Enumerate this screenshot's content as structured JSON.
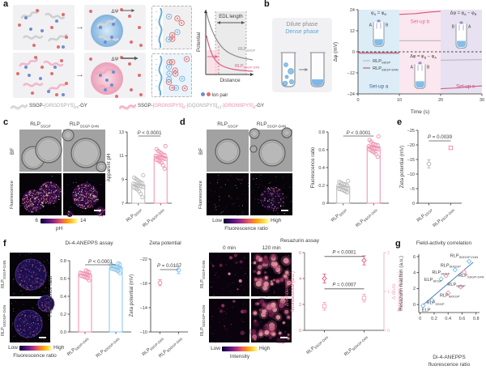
{
  "colors": {
    "pink": "#e05a85",
    "light_pink": "#f2a7bc",
    "gray_pt": "#b9b9b9",
    "blue_pt": "#86c5ea",
    "ion_red": "#e26d6d",
    "ion_blue": "#6b8fd0",
    "trend_blue": "#4a7fc1",
    "setup_a_bg": "#ddedf7",
    "setup_b_bg": "#fbe7ef",
    "setup_c_bg": "#e7e1f1",
    "fire": [
      "#1b0533",
      "#43116b",
      "#71208c",
      "#a12c86",
      "#cf4875",
      "#ee6e59",
      "#fba55c",
      "#fde39b",
      "#ffffff"
    ],
    "anepps": [
      "#140a3f",
      "#2a1668",
      "#45247f",
      "#6b3594",
      "#a04b8f",
      "#d66f7e",
      "#f29e63"
    ],
    "resazurin": [
      "#40102f",
      "#6d1d4a",
      "#9c3a64",
      "#c96682",
      "#eb97a8"
    ]
  },
  "panels": {
    "a": {
      "label": "a",
      "dpsi": "ΔΨ",
      "plot": {
        "ylabel": "Potential",
        "xlabel": "Distance",
        "edl": "EDL length",
        "curve_gray": {
          "base": "RLP",
          "sub": "SSGP"
        },
        "curve_pink": {
          "base": "RLP",
          "sub": "SSGP-D4N"
        }
      },
      "ion_legend": "Ion pair",
      "seq1": [
        {
          "t": "SSGP-"
        },
        {
          "t": "[GRGDSPYS]",
          "c": "#a9a9a9"
        },
        {
          "t": "20",
          "sub": true,
          "c": "#a9a9a9"
        },
        {
          "t": "-GY"
        }
      ],
      "seq2": [
        {
          "t": "SSGP-"
        },
        {
          "t": "[GRGNSPYS]",
          "c": "#ef8ba6"
        },
        {
          "t": "4",
          "sub": true,
          "c": "#ef8ba6"
        },
        {
          "t": "-[GQGNSPYS]",
          "c": "#a9a9a9"
        },
        {
          "t": "12",
          "sub": true,
          "c": "#a9a9a9"
        },
        {
          "t": "-[GRGNSPYS]",
          "c": "#ef8ba6"
        },
        {
          "t": "4",
          "sub": true,
          "c": "#ef8ba6"
        },
        {
          "t": "-GY"
        }
      ]
    },
    "b": {
      "label": "b",
      "dilute": "Dilute phase",
      "dense": "Dense phase"
    },
    "c": {
      "label": "c",
      "col1": {
        "base": "RLP",
        "sub": "SSGP"
      },
      "col2": {
        "base": "RLP",
        "sub": "SSGP-D4N"
      },
      "row1": "BF",
      "row2": "Fluorescence",
      "colorbar": {
        "min": "6",
        "max": "14",
        "title": "pH"
      }
    },
    "d": {
      "label": "d",
      "col1": {
        "base": "RLP",
        "sub": "SSGP"
      },
      "col2": {
        "base": "RLP",
        "sub": "SSGP-D4N"
      },
      "row1": "BF",
      "row2": "Fluorescence",
      "colorbar": {
        "min": "Low",
        "max": "High",
        "title": "Fluorescence ratio"
      }
    },
    "e": {
      "label": "e"
    },
    "f": {
      "label": "f",
      "anepps_title": "Di-4-ANEPPS assay",
      "zeta_title": "Zeta potential",
      "resazurin_title": "Resazurin assay",
      "img1_label": {
        "base": "RLP",
        "sub": "SSGP-D4N"
      },
      "img2_label": {
        "base": "RLP",
        "sub": "SDDGP-D4N"
      },
      "rz_col1": "0 min",
      "rz_col2": "120 min",
      "colorbar1": {
        "min": "Low",
        "max": "High",
        "title": "Fluorescence ratio"
      },
      "colorbar2": {
        "min": "Low",
        "max": "High",
        "title": "Intensity"
      }
    },
    "g": {
      "label": "g",
      "title": "Field-activity correlation"
    }
  },
  "chart_data": [
    {
      "id": "chart-b",
      "type": "line",
      "title": "",
      "xlabel": "Time (s)",
      "ylabel": "Δφ (mV)",
      "xlim": [
        0,
        30
      ],
      "ylim": [
        -24,
        24
      ],
      "xticks": [
        {
          "v": 0,
          "l": "0"
        },
        {
          "v": 10,
          "l": "10"
        },
        {
          "v": 20,
          "l": "20"
        },
        {
          "v": 30,
          "l": "30"
        }
      ],
      "yticks": [
        {
          "v": 24,
          "l": "24"
        },
        {
          "v": 12,
          "l": "12"
        },
        {
          "v": 0,
          "l": "0"
        },
        {
          "v": -12,
          "l": "−12"
        },
        {
          "v": -24,
          "l": "−24"
        }
      ],
      "zero_line": true,
      "regions": [
        {
          "x0": 0,
          "x1": 10,
          "color": "#ddedf7",
          "label": "Set-up a",
          "label_color": "#3d5a96",
          "label_x": 5,
          "label_y": -20.5
        },
        {
          "x0": 10,
          "x1": 20,
          "color": "#fbe7ef",
          "label": "Set-up b",
          "label_color": "#e06790",
          "label_x": 15,
          "label_y": 16.5
        },
        {
          "x0": 20,
          "x1": 30,
          "color": "#e7e1f1",
          "label": "Set-up c",
          "label_color": "#c2477a",
          "label_x": 26,
          "label_y": -20.5
        }
      ],
      "series": [
        {
          "name": {
            "base": "RLP",
            "sub": "SSGP"
          },
          "color": "#b9b9b9",
          "segments": [
            [
              [
                0,
                -1
              ],
              [
                10,
                -1
              ]
            ],
            [
              [
                10,
                6.3
              ],
              [
                20,
                6.3
              ]
            ],
            [
              [
                20,
                -4.8
              ],
              [
                30,
                -4.4
              ]
            ]
          ]
        },
        {
          "name": {
            "base": "RLP",
            "sub": "SSGP-D4N"
          },
          "color": "#d0567e",
          "segments": [
            [
              [
                0,
                -0.5
              ],
              [
                10,
                -0.5
              ]
            ],
            [
              [
                10,
                21.3
              ],
              [
                14,
                21.8
              ],
              [
                17,
                22.6
              ],
              [
                20,
                23.1
              ]
            ],
            [
              [
                20,
                -21
              ],
              [
                24,
                -20.6
              ],
              [
                27,
                -19.9
              ],
              [
                30,
                -19.4
              ]
            ]
          ]
        }
      ],
      "annotations": [
        {
          "x": 5,
          "y": 21.5,
          "parts": [
            {
              "t": "φ"
            },
            {
              "t": "A",
              "sub": true
            },
            {
              "t": " = φ"
            },
            {
              "t": "B",
              "sub": true
            }
          ]
        },
        {
          "x": 15.8,
          "y": -3.2,
          "parts": [
            {
              "t": "Δφ = φ"
            },
            {
              "t": "B",
              "sub": true
            },
            {
              "t": " − φ"
            },
            {
              "t": "A",
              "sub": true
            }
          ]
        },
        {
          "x": 25.5,
          "y": 21.5,
          "parts": [
            {
              "t": "Δφ = φ"
            },
            {
              "t": "A",
              "sub": true
            },
            {
              "t": " − φ"
            },
            {
              "t": "B",
              "sub": true
            }
          ]
        }
      ],
      "tubes": [
        {
          "x": 5,
          "y": 10,
          "left": "A",
          "right": "B"
        },
        {
          "x": 15,
          "y": -14,
          "left": "A",
          "right": "B"
        },
        {
          "x": 25,
          "y": 9,
          "left": "B",
          "right": "A"
        }
      ],
      "legend": {
        "x": 1.2,
        "y": -6
      }
    },
    {
      "id": "chart-c",
      "type": "strip",
      "ylabel": "Apparent pH",
      "ylim": [
        7,
        13
      ],
      "yticks": [
        {
          "v": 7,
          "l": "7"
        },
        {
          "v": 9,
          "l": "9"
        },
        {
          "v": 11,
          "l": "11"
        },
        {
          "v": 13,
          "l": "13"
        }
      ],
      "p": "P < 0.0001",
      "groups": [
        {
          "label": {
            "base": "RLP",
            "sub": "SSGP"
          },
          "color": "#b9b9b9",
          "mean": 8.55,
          "values": [
            7.5,
            7.8,
            8.0,
            8.15,
            8.25,
            8.3,
            8.35,
            8.4,
            8.45,
            8.5,
            8.55,
            8.6,
            8.65,
            8.7,
            8.75,
            8.85,
            8.95,
            9.05,
            9.15,
            9.35
          ]
        },
        {
          "label": {
            "base": "RLP",
            "sub": "SSGP-D4N"
          },
          "color": "#ef8fae",
          "mean": 10.9,
          "values": [
            9.9,
            10.2,
            10.4,
            10.5,
            10.6,
            10.65,
            10.7,
            10.75,
            10.8,
            10.85,
            10.9,
            10.95,
            11.0,
            11.05,
            11.1,
            11.2,
            11.3,
            11.4,
            11.55,
            11.8
          ]
        }
      ]
    },
    {
      "id": "chart-d",
      "type": "strip",
      "ylabel": "Fluorescence ratio",
      "ylim": [
        0,
        0.8
      ],
      "yticks": [
        {
          "v": 0,
          "l": "0"
        },
        {
          "v": 0.2,
          "l": "0.2"
        },
        {
          "v": 0.4,
          "l": "0.4"
        },
        {
          "v": 0.6,
          "l": "0.6"
        },
        {
          "v": 0.8,
          "l": "0.8"
        }
      ],
      "p": "P < 0.0001",
      "groups": [
        {
          "label": {
            "base": "RLP",
            "sub": "SSGP"
          },
          "color": "#b9b9b9",
          "mean": 0.185,
          "values": [
            0.12,
            0.13,
            0.14,
            0.15,
            0.155,
            0.16,
            0.165,
            0.17,
            0.175,
            0.18,
            0.185,
            0.19,
            0.195,
            0.2,
            0.21,
            0.215,
            0.22,
            0.23,
            0.24,
            0.25
          ]
        },
        {
          "label": {
            "base": "RLP",
            "sub": "SSGP-D4N"
          },
          "color": "#ef8fae",
          "mean": 0.63,
          "values": [
            0.52,
            0.55,
            0.57,
            0.58,
            0.59,
            0.6,
            0.605,
            0.61,
            0.615,
            0.62,
            0.625,
            0.63,
            0.64,
            0.65,
            0.655,
            0.66,
            0.67,
            0.69,
            0.71,
            0.75
          ]
        }
      ]
    },
    {
      "id": "chart-e",
      "type": "points",
      "ylabel": "Zeta potential (mV)",
      "ylim": [
        0,
        -25
      ],
      "yticks": [
        {
          "v": 0,
          "l": "0"
        },
        {
          "v": -5,
          "l": "−5"
        },
        {
          "v": -10,
          "l": "−10"
        },
        {
          "v": -15,
          "l": "−15"
        },
        {
          "v": -20,
          "l": "−20"
        },
        {
          "v": -25,
          "l": "−25"
        }
      ],
      "p": "P = 0.0039",
      "points": [
        {
          "label": {
            "base": "RLP",
            "sub": "SSGP"
          },
          "marker": "circle",
          "color": "#b9b9b9",
          "value": -13.5,
          "err": 1.4
        },
        {
          "label": {
            "base": "RLP",
            "sub": "SSGP-D4N"
          },
          "marker": "square",
          "color": "#ef8fae",
          "value": -19,
          "err": 0.5
        }
      ]
    },
    {
      "id": "chart-f1",
      "type": "strip",
      "ylabel": "Fluorescence ratio",
      "ylim": [
        0,
        0.8
      ],
      "yticks": [
        {
          "v": 0,
          "l": "0.0"
        },
        {
          "v": 0.2,
          "l": "0.2"
        },
        {
          "v": 0.4,
          "l": "0.4"
        },
        {
          "v": 0.6,
          "l": "0.6"
        },
        {
          "v": 0.8,
          "l": "0.8"
        }
      ],
      "p": "P < 0.0001",
      "groups": [
        {
          "label": {
            "base": "RLP",
            "sub": "SSGP-D4N"
          },
          "color": "#ef8fae",
          "mean": 0.645,
          "values": [
            0.58,
            0.6,
            0.61,
            0.62,
            0.625,
            0.63,
            0.635,
            0.64,
            0.645,
            0.65,
            0.655,
            0.66,
            0.665,
            0.67,
            0.68,
            0.69
          ]
        },
        {
          "label": {
            "base": "RLP",
            "sub": "SDDGP-D4N"
          },
          "color": "#86c5ea",
          "mean": 0.72,
          "values": [
            0.66,
            0.68,
            0.69,
            0.7,
            0.705,
            0.71,
            0.715,
            0.72,
            0.725,
            0.73,
            0.74,
            0.745,
            0.75,
            0.76,
            0.77
          ]
        }
      ]
    },
    {
      "id": "chart-f2",
      "type": "points",
      "ylabel": "Zeta potential (mV)",
      "ylim": [
        -10,
        -22
      ],
      "yticks": [
        {
          "v": -10,
          "l": "−10"
        },
        {
          "v": -14,
          "l": "−14"
        },
        {
          "v": -18,
          "l": "−18"
        },
        {
          "v": -22,
          "l": "−22"
        }
      ],
      "p": "P = 0.0107",
      "points": [
        {
          "label": {
            "base": "RLP",
            "sub": "SSGP-D4N"
          },
          "marker": "circle",
          "color": "#ef8fae",
          "value": -18.1,
          "err": 0.5
        },
        {
          "label": {
            "base": "RLP",
            "sub": "SDDGP-D4N"
          },
          "marker": "circle",
          "color": "#86c5ea",
          "value": -20.2,
          "err": 0.6
        }
      ]
    },
    {
      "id": "chart-f3",
      "type": "dualpoints",
      "ylabel_left": [
        "Δ condensate",
        "fluorescence (a.u.)"
      ],
      "ylabel_left_color": "#e8638c",
      "ylabel_right": [
        "Δ dilute",
        "fluorescence (a.u.)"
      ],
      "ylabel_right_color": "#f2a7bc",
      "ylim_left": [
        0,
        6
      ],
      "yticks_left": [
        {
          "v": 0,
          "l": "0"
        },
        {
          "v": 2,
          "l": "2"
        },
        {
          "v": 4,
          "l": "4"
        },
        {
          "v": 6,
          "l": "6"
        }
      ],
      "ylim_right": [
        0,
        2
      ],
      "yticks_right": [
        {
          "v": 0,
          "l": "0"
        },
        {
          "v": 1,
          "l": "1"
        },
        {
          "v": 2,
          "l": "2"
        }
      ],
      "p1": "P < 0.0001",
      "p2": "P = 0.0007",
      "groups": [
        {
          "base": "RLP",
          "sub": "SSGP-D4N"
        },
        {
          "base": "RLP",
          "sub": "SDDGP-D4N"
        }
      ],
      "series": [
        {
          "name": "condensate",
          "axis": "left",
          "marker": "diamond",
          "color": "#e8638c",
          "values": [
            4.0,
            5.4
          ],
          "errs": [
            0.35,
            0.35
          ]
        },
        {
          "name": "dilute",
          "axis": "right",
          "marker": "square",
          "color": "#f4a9c0",
          "values": [
            0.62,
            0.83
          ],
          "errs": [
            0.1,
            0.1
          ]
        }
      ]
    },
    {
      "id": "chart-g",
      "type": "scatter",
      "title": "Field-activity correlation",
      "ylabel": "Resazurin reaction (a.u.)",
      "xlabel_lines": [
        "Di-4-ANEPPS",
        "fluorescence ratio"
      ],
      "xlim": [
        -0.02,
        0.85
      ],
      "ylim": [
        -1,
        6.3
      ],
      "xticks": [
        {
          "v": 0,
          "l": "0"
        },
        {
          "v": 0.2,
          "l": "0.2"
        },
        {
          "v": 0.4,
          "l": "0.4"
        },
        {
          "v": 0.6,
          "l": "0.6"
        },
        {
          "v": 0.8,
          "l": "0.8"
        }
      ],
      "yticks": [
        {
          "v": 0,
          "l": "0"
        },
        {
          "v": 2,
          "l": "2"
        },
        {
          "v": 4,
          "l": "4"
        },
        {
          "v": 6,
          "l": "6"
        }
      ],
      "trend": {
        "x0": 0.02,
        "y0": -0.2,
        "x1": 0.76,
        "y1": 5.3,
        "color": "#4a7fc1"
      },
      "points": [
        {
          "label": {
            "base": "ELP",
            "sub": ""
          },
          "x": 0.04,
          "y": -0.15,
          "color": "#86c5ea",
          "lx": 0.025,
          "ly": -0.85
        },
        {
          "label": {
            "base": "RLP",
            "sub": "SSGP"
          },
          "x": 0.17,
          "y": 0.55,
          "color": "#86c5ea",
          "lx": 0.09,
          "ly": 0.05
        },
        {
          "label": {
            "base": "ELP",
            "sub": "SKGP"
          },
          "x": 0.3,
          "y": 3.2,
          "color": "#86c5ea",
          "lx": 0.06,
          "ly": 2.95
        },
        {
          "label": {
            "base": "RLP",
            "sub": "SKGP"
          },
          "x": 0.37,
          "y": 3.6,
          "color": "#f29ab5",
          "lx": 0.17,
          "ly": 3.85
        },
        {
          "label": {
            "base": "RLP",
            "sub": "SKKGP"
          },
          "x": 0.4,
          "y": 1.45,
          "color": "#f29ab5",
          "lx": 0.28,
          "ly": 1.0
        },
        {
          "label": {
            "base": "RLP",
            "sub": "SDGP"
          },
          "x": 0.58,
          "y": 2.2,
          "color": "#f29ab5",
          "lx": 0.39,
          "ly": 2.35
        },
        {
          "label": {
            "base": "RLP",
            "sub": "SDDGP"
          },
          "x": 0.5,
          "y": 4.35,
          "color": "#86c5ea",
          "lx": 0.29,
          "ly": 4.75
        },
        {
          "label": {
            "base": "RLP",
            "sub": "SSGP-D4N"
          },
          "x": 0.63,
          "y": 4.05,
          "color": "#f29ab5",
          "lx": 0.55,
          "ly": 3.45
        },
        {
          "label": {
            "base": "RLP",
            "sub": "SDDGP-D4N"
          },
          "x": 0.7,
          "y": 5.4,
          "color": "#86c5ea",
          "lx": 0.43,
          "ly": 5.95
        }
      ]
    }
  ]
}
